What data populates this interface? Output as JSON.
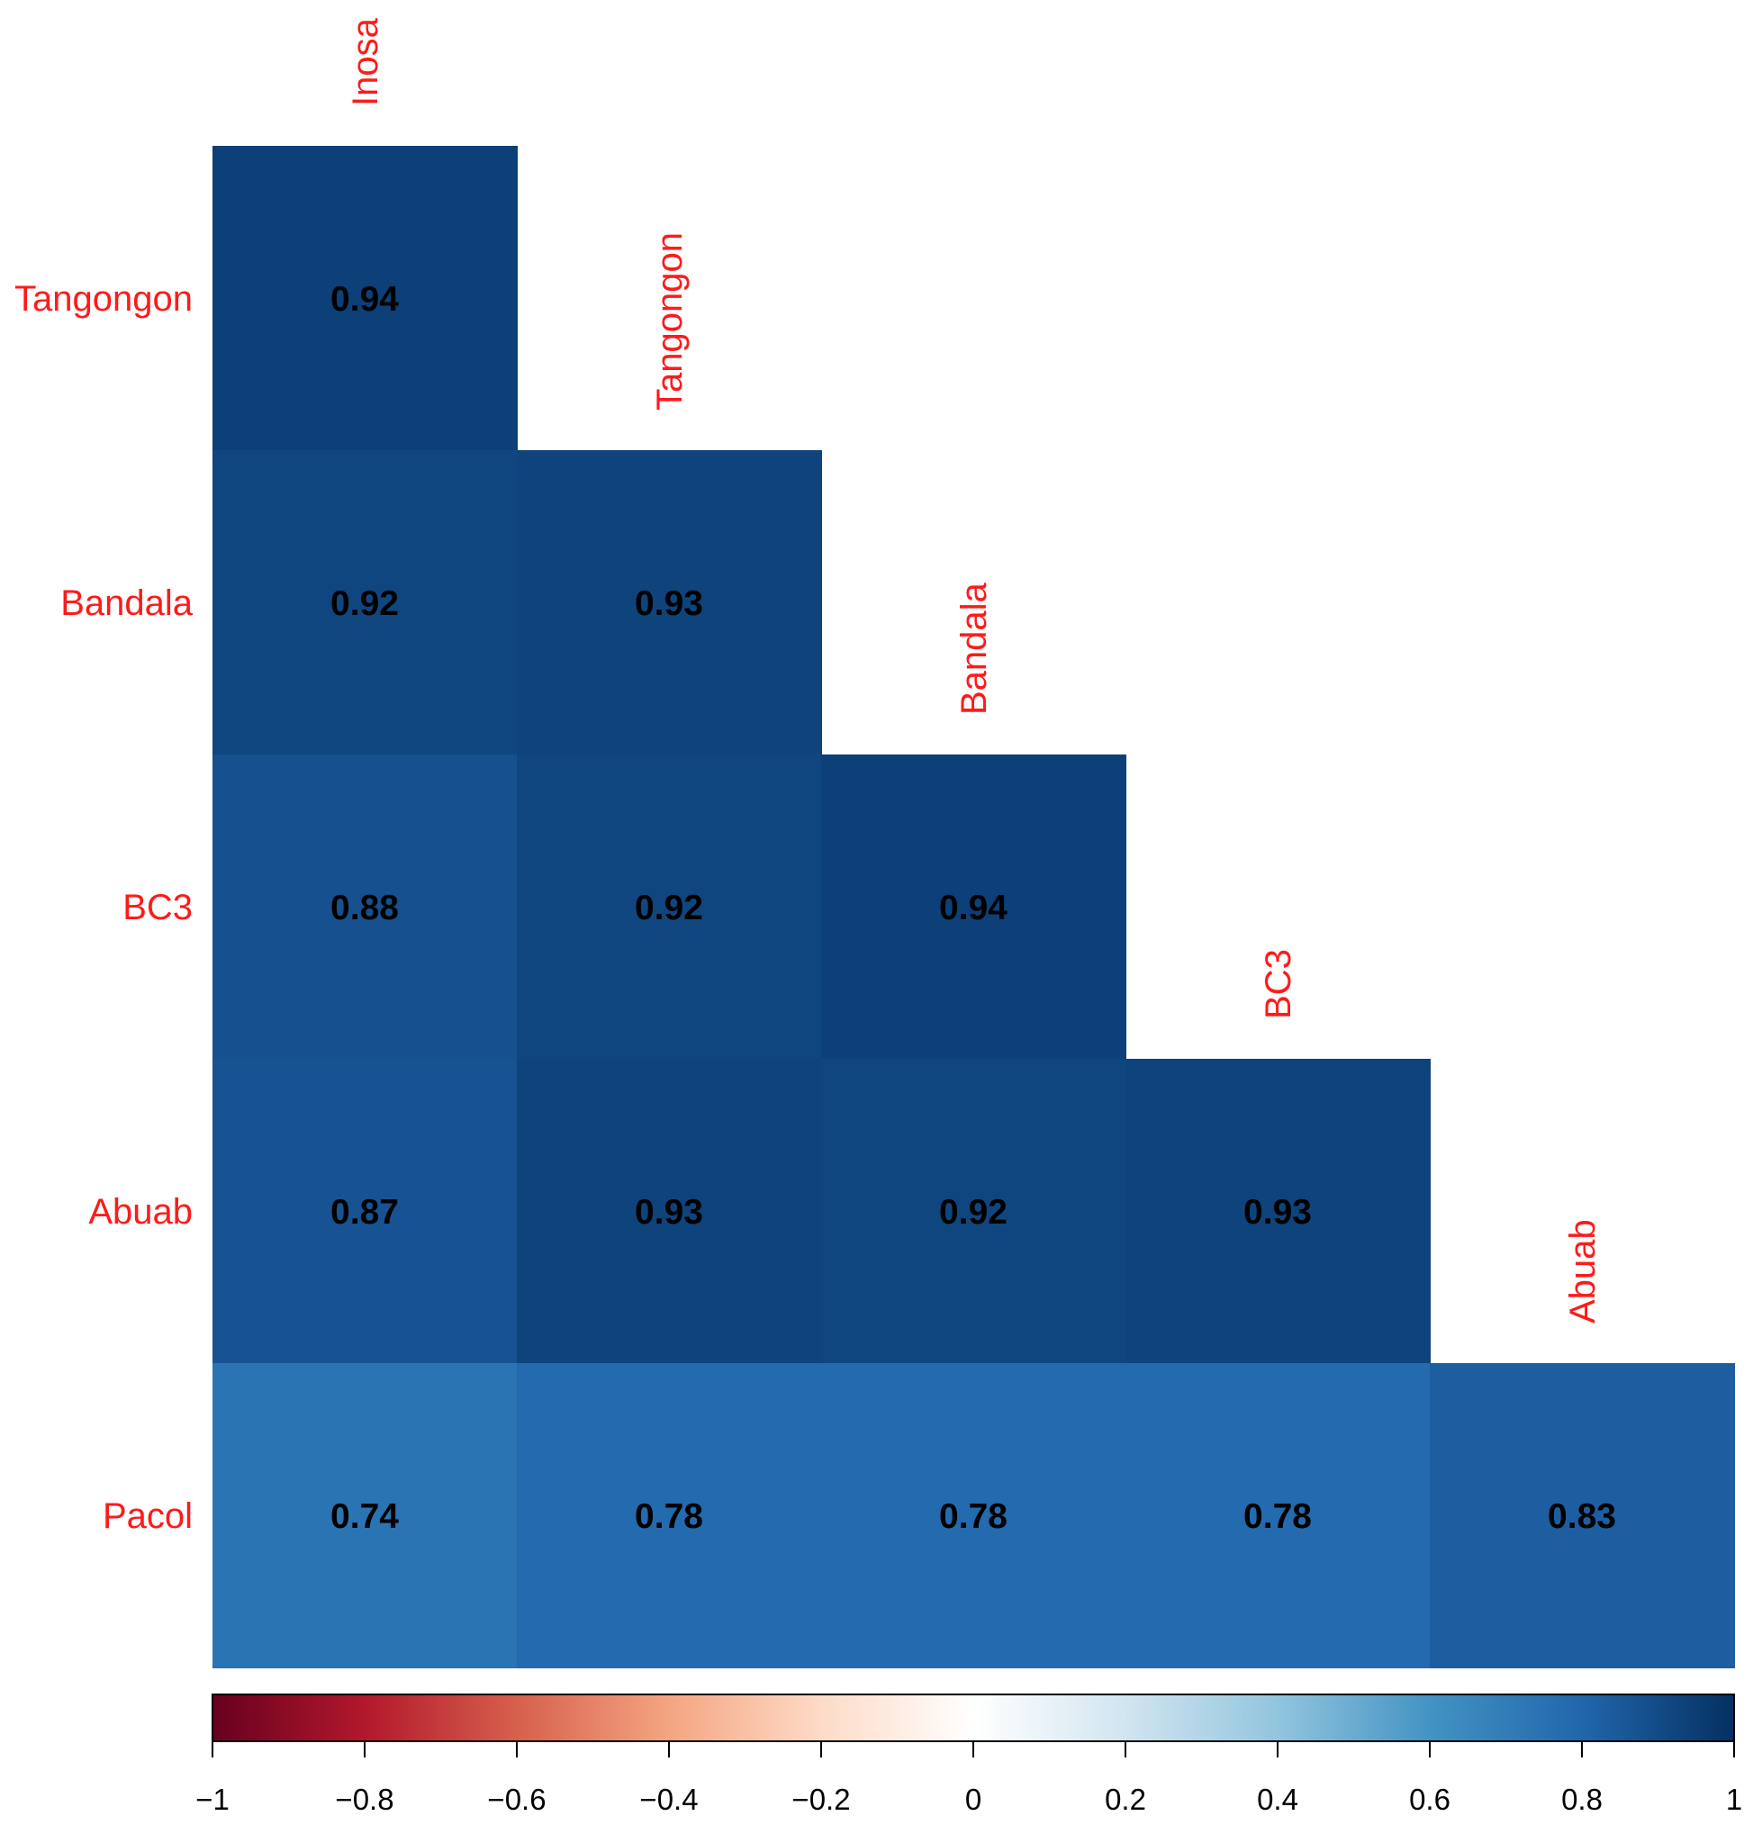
{
  "chart_data": {
    "type": "heatmap",
    "variables": [
      "Inosa",
      "Tangongon",
      "Bandala",
      "BC3",
      "Abuab",
      "Pacol"
    ],
    "row_labels": [
      "Tangongon",
      "Bandala",
      "BC3",
      "Abuab",
      "Pacol"
    ],
    "column_labels": [
      "Inosa",
      "Tangongon",
      "Bandala",
      "BC3",
      "Abuab"
    ],
    "matrix": [
      [
        0.94
      ],
      [
        0.92,
        0.93
      ],
      [
        0.88,
        0.92,
        0.94
      ],
      [
        0.87,
        0.93,
        0.92,
        0.93
      ],
      [
        0.74,
        0.78,
        0.78,
        0.78,
        0.83
      ]
    ],
    "value_labels": [
      [
        "0.94"
      ],
      [
        "0.92",
        "0.93"
      ],
      [
        "0.88",
        "0.92",
        "0.94"
      ],
      [
        "0.87",
        "0.93",
        "0.92",
        "0.93"
      ],
      [
        "0.74",
        "0.78",
        "0.78",
        "0.78",
        "0.83"
      ]
    ],
    "color_scale": {
      "range": [
        -1,
        1
      ],
      "ticks": [
        -1,
        -0.8,
        -0.6,
        -0.4,
        -0.2,
        0,
        0.2,
        0.4,
        0.6,
        0.8,
        1
      ],
      "tick_labels": [
        "−1",
        "−0.8",
        "−0.6",
        "−0.4",
        "−0.2",
        "0",
        "0.2",
        "0.4",
        "0.6",
        "0.8",
        "1"
      ],
      "colors": [
        "#67001f",
        "#b2182b",
        "#d6604d",
        "#f4a582",
        "#fddbc7",
        "#ffffff",
        "#d1e5f0",
        "#92c5de",
        "#4393c3",
        "#2166ac",
        "#053061"
      ]
    },
    "legend_placement": "bottom",
    "label_color": "#ff1a1a"
  }
}
